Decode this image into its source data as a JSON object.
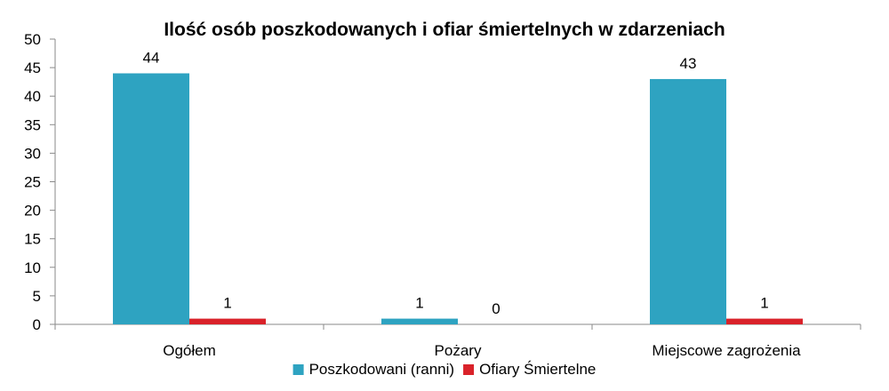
{
  "chart_data": {
    "type": "bar",
    "title": "Ilość osób poszkodowanych i ofiar śmiertelnych w zdarzeniach",
    "categories": [
      "Ogółem",
      "Pożary",
      "Miejscowe zagrożenia"
    ],
    "series": [
      {
        "name": "Poszkodowani (ranni)",
        "values": [
          44,
          1,
          43
        ],
        "color": "#2ea3c1"
      },
      {
        "name": "Ofiary Śmiertelne",
        "values": [
          1,
          0,
          1
        ],
        "color": "#d9222a"
      }
    ],
    "ylim": [
      0,
      50
    ],
    "yticks": [
      0,
      5,
      10,
      15,
      20,
      25,
      30,
      35,
      40,
      45,
      50
    ],
    "grid": false,
    "legend_position": "bottom"
  }
}
